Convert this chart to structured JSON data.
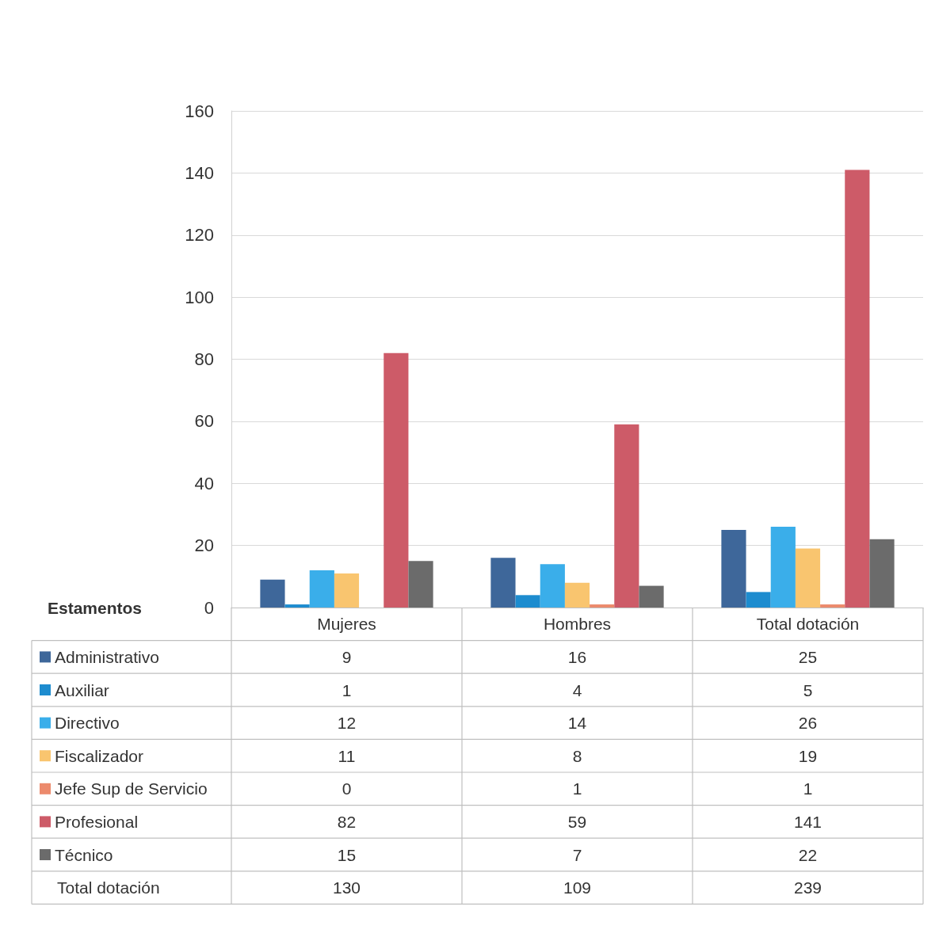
{
  "chart_data": {
    "type": "bar",
    "categories": [
      "Mujeres",
      "Hombres",
      "Total dotación"
    ],
    "series": [
      {
        "name": "Administrativo",
        "color": "#3e679a",
        "values": [
          9,
          16,
          25
        ]
      },
      {
        "name": "Auxiliar",
        "color": "#1d8ccf",
        "values": [
          1,
          4,
          5
        ]
      },
      {
        "name": "Directivo",
        "color": "#3aaeea",
        "values": [
          12,
          14,
          26
        ]
      },
      {
        "name": "Fiscalizador",
        "color": "#f9c56f",
        "values": [
          11,
          8,
          19
        ]
      },
      {
        "name": "Jefe Sup de Servicio",
        "color": "#ec8a6c",
        "values": [
          0,
          1,
          1
        ]
      },
      {
        "name": "Profesional",
        "color": "#cd5b68",
        "values": [
          82,
          59,
          141
        ]
      },
      {
        "name": "Técnico",
        "color": "#6b6b6b",
        "values": [
          15,
          7,
          22
        ]
      }
    ],
    "ylim": [
      0,
      160
    ],
    "yticks": [
      0,
      20,
      40,
      60,
      80,
      100,
      120,
      140,
      160
    ],
    "grid": "y",
    "legend": "bottom",
    "legend_title": "Estamentos",
    "data_labels": true,
    "annotations": [
      "Total dotación",
      "130",
      "109",
      "239"
    ]
  }
}
